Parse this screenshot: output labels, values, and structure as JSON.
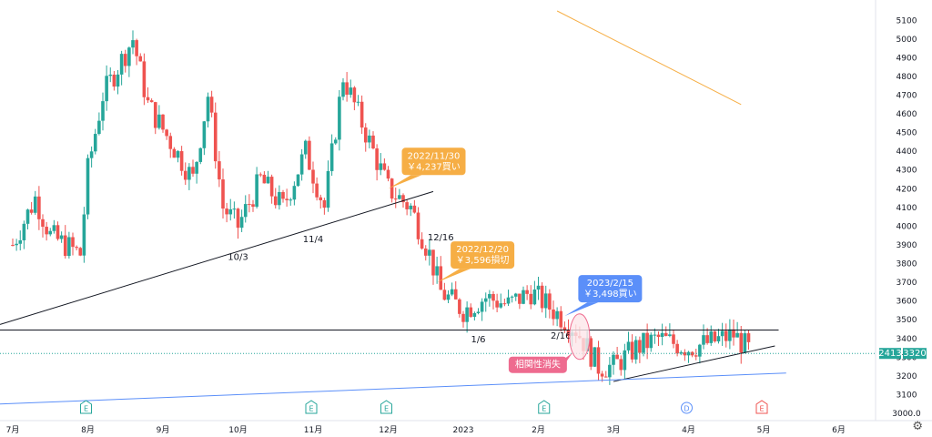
{
  "chart_data": {
    "type": "candlestick",
    "y_axis": {
      "ticks": [
        3000,
        3100,
        3200,
        3300,
        3400,
        3500,
        3600,
        3700,
        3800,
        3900,
        4000,
        4100,
        4200,
        4300,
        4400,
        4500,
        4600,
        4700,
        4800,
        4900,
        5000,
        5100
      ],
      "bottom_label": "3000.0",
      "range": [
        3000,
        5150
      ]
    },
    "x_axis": {
      "labels": [
        {
          "text": "7月",
          "pos": 0.0
        },
        {
          "text": "8月",
          "pos": 1.0
        },
        {
          "text": "9月",
          "pos": 2.0
        },
        {
          "text": "10月",
          "pos": 3.0
        },
        {
          "text": "11月",
          "pos": 4.0
        },
        {
          "text": "12月",
          "pos": 5.0
        },
        {
          "text": "2023",
          "pos": 6.0
        },
        {
          "text": "2月",
          "pos": 7.0
        },
        {
          "text": "3月",
          "pos": 8.0
        },
        {
          "text": "4月",
          "pos": 9.0
        },
        {
          "text": "5月",
          "pos": 10.0
        },
        {
          "text": "6月",
          "pos": 11.0
        }
      ]
    },
    "price_badges": {
      "left": "2413",
      "right": "3320"
    },
    "current_price": 3320,
    "series": [
      {
        "name": "candles",
        "ohlc_keypoints": [
          {
            "t": 0.0,
            "p": 3900
          },
          {
            "t": 0.3,
            "p": 4150
          },
          {
            "t": 0.5,
            "p": 3950
          },
          {
            "t": 0.9,
            "p": 3850
          },
          {
            "t": 1.0,
            "p": 4300
          },
          {
            "t": 1.2,
            "p": 4700
          },
          {
            "t": 1.6,
            "p": 5000
          },
          {
            "t": 1.8,
            "p": 4650
          },
          {
            "t": 2.1,
            "p": 4450
          },
          {
            "t": 2.4,
            "p": 4250
          },
          {
            "t": 2.6,
            "p": 4700
          },
          {
            "t": 2.8,
            "p": 4100
          },
          {
            "t": 3.0,
            "p": 4000
          },
          {
            "t": 3.3,
            "p": 4250
          },
          {
            "t": 3.6,
            "p": 4100
          },
          {
            "t": 3.9,
            "p": 4400
          },
          {
            "t": 4.15,
            "p": 4100
          },
          {
            "t": 4.4,
            "p": 4800
          },
          {
            "t": 4.7,
            "p": 4500
          },
          {
            "t": 5.0,
            "p": 4200
          },
          {
            "t": 5.3,
            "p": 4100
          },
          {
            "t": 5.55,
            "p": 3850
          },
          {
            "t": 5.7,
            "p": 3650
          },
          {
            "t": 6.0,
            "p": 3550
          },
          {
            "t": 6.3,
            "p": 3620
          },
          {
            "t": 6.6,
            "p": 3580
          },
          {
            "t": 6.9,
            "p": 3650
          },
          {
            "t": 7.2,
            "p": 3550
          },
          {
            "t": 7.5,
            "p": 3450
          },
          {
            "t": 7.8,
            "p": 3250
          },
          {
            "t": 8.0,
            "p": 3250
          },
          {
            "t": 8.3,
            "p": 3350
          },
          {
            "t": 8.6,
            "p": 3400
          },
          {
            "t": 9.0,
            "p": 3350
          },
          {
            "t": 9.3,
            "p": 3380
          },
          {
            "t": 9.6,
            "p": 3420
          },
          {
            "t": 9.85,
            "p": 3320
          }
        ]
      }
    ],
    "annotations": {
      "dates": [
        {
          "text": "10/3",
          "t": 3.0,
          "p": 3820
        },
        {
          "text": "11/4",
          "t": 4.0,
          "p": 3915
        },
        {
          "text": "12/16",
          "t": 5.7,
          "p": 3925
        },
        {
          "text": "1/6",
          "t": 6.2,
          "p": 3380
        },
        {
          "text": "2/16",
          "t": 7.3,
          "p": 3400
        }
      ],
      "callouts": [
        {
          "line1": "2022/11/30",
          "line2": "￥4,237買い",
          "color": "#f6ae45",
          "t": 5.0,
          "p": 4200
        },
        {
          "line1": "2022/12/20",
          "line2": "￥3,596損切",
          "color": "#f6ae45",
          "t": 5.65,
          "p": 3700
        },
        {
          "line1": "2023/2/15",
          "line2": "￥3,498買い",
          "color": "#5b8ff9",
          "t": 7.35,
          "p": 3520
        }
      ],
      "note": {
        "text": "相関性消失",
        "color": "#ee6b8f"
      },
      "event_markers": [
        "E",
        "E",
        "E",
        "E",
        "D",
        "E"
      ]
    },
    "colors": {
      "up": "#26a69a",
      "down": "#ef5350",
      "trend_black": "#131722",
      "trend_blue": "#5b8ff9",
      "trend_orange": "#f6ae45"
    },
    "grid": false
  }
}
